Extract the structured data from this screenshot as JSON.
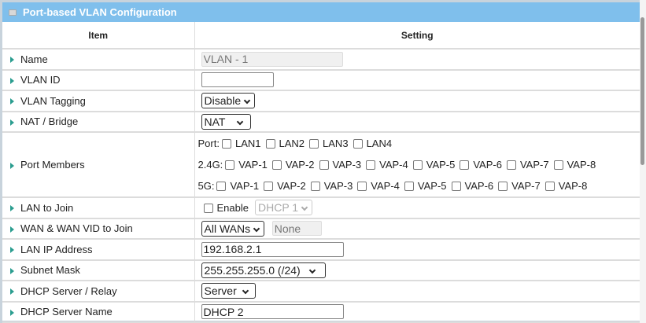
{
  "title": "Port-based VLAN Configuration",
  "headers": {
    "item": "Item",
    "setting": "Setting"
  },
  "rows": {
    "name": {
      "label": "Name",
      "value": "VLAN - 1"
    },
    "vlan_id": {
      "label": "VLAN ID",
      "value": ""
    },
    "tagging": {
      "label": "VLAN Tagging",
      "value": "Disable"
    },
    "nat": {
      "label": "NAT / Bridge",
      "value": "NAT"
    },
    "ports": {
      "label": "Port Members",
      "port_label": "Port:",
      "lan": [
        "LAN1",
        "LAN2",
        "LAN3",
        "LAN4"
      ],
      "g24_label": "2.4G:",
      "g5_label": "5G:",
      "vap": [
        "VAP-1",
        "VAP-2",
        "VAP-3",
        "VAP-4",
        "VAP-5",
        "VAP-6",
        "VAP-7",
        "VAP-8"
      ]
    },
    "lan_join": {
      "label": "LAN to Join",
      "enable": "Enable",
      "dhcp": "DHCP 1"
    },
    "wan": {
      "label": "WAN & WAN VID to Join",
      "value": "All WANs",
      "vid": "None"
    },
    "lan_ip": {
      "label": "LAN IP Address",
      "value": "192.168.2.1"
    },
    "subnet": {
      "label": "Subnet Mask",
      "value": "255.255.255.0 (/24)"
    },
    "dhcp_server": {
      "label": "DHCP Server / Relay",
      "value": "Server"
    },
    "dhcp_name": {
      "label": "DHCP Server Name",
      "value": "DHCP 2"
    }
  }
}
